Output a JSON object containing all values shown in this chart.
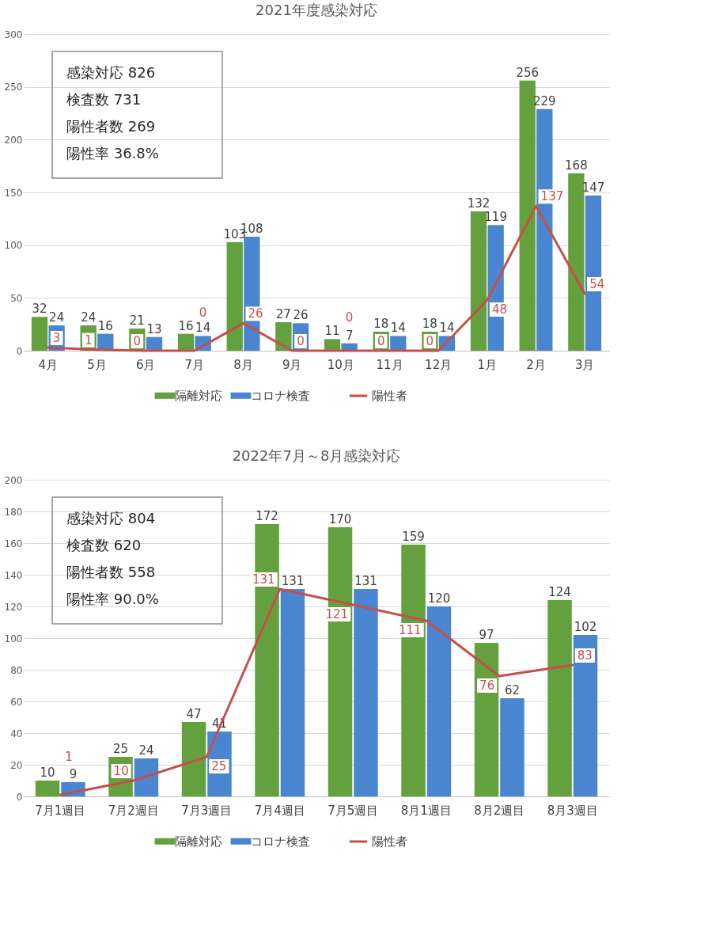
{
  "chart_data": [
    {
      "type": "bar",
      "title": "2021年度感染対応",
      "categories": [
        "4月",
        "5月",
        "6月",
        "7月",
        "8月",
        "9月",
        "10月",
        "11月",
        "12月",
        "1月",
        "2月",
        "3月"
      ],
      "series": [
        {
          "name": "隔離対応",
          "color": "#64a03e",
          "values": [
            32,
            24,
            21,
            16,
            103,
            27,
            11,
            18,
            18,
            132,
            256,
            168
          ]
        },
        {
          "name": "コロナ検査",
          "color": "#4a86cf",
          "values": [
            24,
            16,
            13,
            14,
            108,
            26,
            7,
            14,
            14,
            119,
            229,
            147
          ]
        },
        {
          "name": "陽性者",
          "type": "line",
          "color": "#c5504b",
          "values": [
            3,
            1,
            0,
            0,
            26,
            0,
            0,
            0,
            0,
            48,
            137,
            54
          ]
        }
      ],
      "ylim": [
        0,
        300
      ],
      "yticks": [
        0,
        50,
        100,
        150,
        200,
        250,
        300
      ],
      "grid": "y",
      "legend": "bottom",
      "data_labels": true,
      "annotations": [
        "感染対応 826",
        "検査数 731",
        "陽性者数 269",
        "陽性率 36.8%"
      ]
    },
    {
      "type": "bar",
      "title": "2022年7月～8月感染対応",
      "categories": [
        "7月1週目",
        "7月2週目",
        "7月3週目",
        "7月4週目",
        "7月5週目",
        "8月1週目",
        "8月2週目",
        "8月3週目"
      ],
      "series": [
        {
          "name": "隔離対応",
          "color": "#64a03e",
          "values": [
            10,
            25,
            47,
            172,
            170,
            159,
            97,
            124
          ]
        },
        {
          "name": "コロナ検査",
          "color": "#4a86cf",
          "values": [
            9,
            24,
            41,
            131,
            131,
            120,
            62,
            102
          ]
        },
        {
          "name": "陽性者",
          "type": "line",
          "color": "#c5504b",
          "values": [
            1,
            10,
            25,
            131,
            121,
            111,
            76,
            83
          ]
        }
      ],
      "ylim": [
        0,
        200
      ],
      "yticks": [
        0,
        20,
        40,
        60,
        80,
        100,
        120,
        140,
        160,
        180,
        200
      ],
      "grid": "y",
      "legend": "bottom",
      "data_labels": true,
      "annotations": [
        "感染対応 804",
        "検査数 620",
        "陽性者数 558",
        "陽性率 90.0%"
      ]
    }
  ]
}
